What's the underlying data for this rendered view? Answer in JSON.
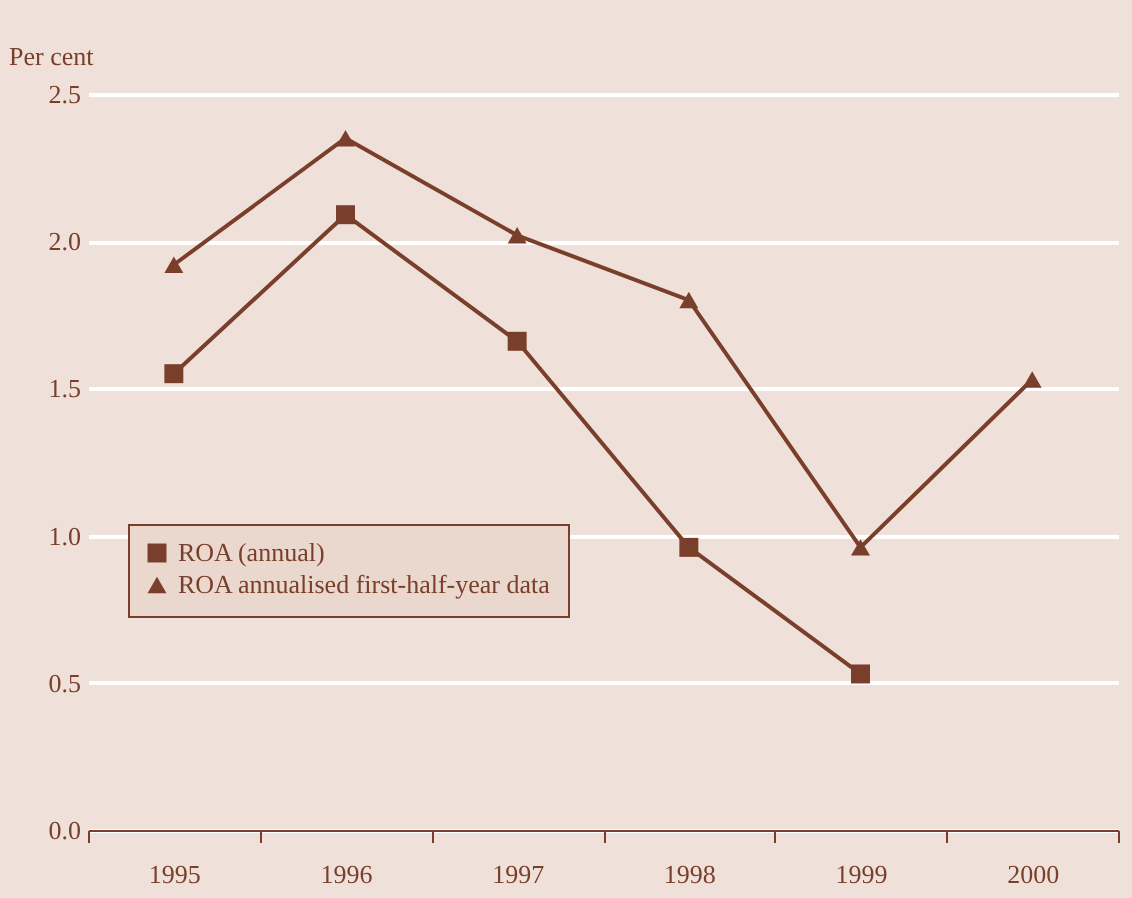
{
  "chart_data": {
    "type": "line",
    "ylabel": "Per cent",
    "categories": [
      "1995",
      "1996",
      "1997",
      "1998",
      "1999",
      "2000"
    ],
    "ylim": [
      0,
      2.5
    ],
    "yticks": [
      {
        "value": 0,
        "label": "0.0"
      },
      {
        "value": 0.5,
        "label": "0.5"
      },
      {
        "value": 1,
        "label": "1.0"
      },
      {
        "value": 1.5,
        "label": "1.5"
      },
      {
        "value": 2,
        "label": "2.0"
      },
      {
        "value": 2.5,
        "label": "2.5"
      }
    ],
    "grid": "y",
    "legend": "left",
    "line_style": "solid",
    "series": [
      {
        "name": "ROA (annual)",
        "color": "#7a3f2a",
        "marker": "square",
        "values": [
          1.55,
          2.09,
          1.66,
          0.96,
          0.53,
          null
        ]
      },
      {
        "name": "ROA annualised first-half-year data",
        "color": "#7a3f2a",
        "marker": "triangle",
        "values": [
          1.92,
          2.35,
          2.02,
          1.8,
          0.96,
          1.53
        ]
      }
    ]
  }
}
